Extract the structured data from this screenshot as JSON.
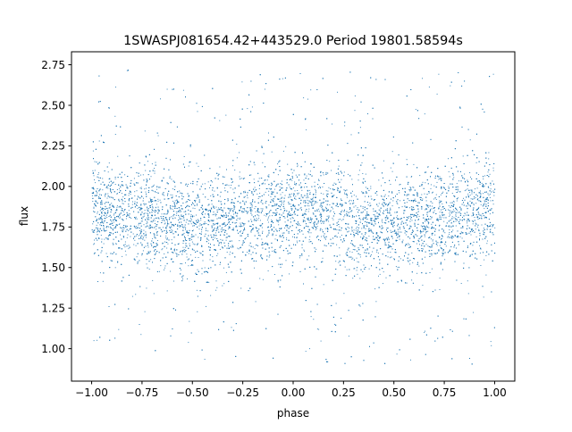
{
  "chart_data": {
    "type": "scatter",
    "title": "1SWASPJ081654.42+443529.0 Period 19801.58594s",
    "xlabel": "phase",
    "ylabel": "flux",
    "xlim": [
      -1.1,
      1.1
    ],
    "ylim": [
      0.8,
      2.83
    ],
    "xticks": [
      "−1.00",
      "−0.75",
      "−0.50",
      "−0.25",
      "0.00",
      "0.25",
      "0.50",
      "0.75",
      "1.00"
    ],
    "xtick_values": [
      -1.0,
      -0.75,
      -0.5,
      -0.25,
      0.0,
      0.25,
      0.5,
      0.75,
      1.0
    ],
    "yticks": [
      "1.00",
      "1.25",
      "1.50",
      "1.75",
      "2.00",
      "2.25",
      "2.50",
      "2.75"
    ],
    "ytick_values": [
      1.0,
      1.25,
      1.5,
      1.75,
      2.0,
      2.25,
      2.5,
      2.75
    ],
    "grid": false,
    "legend": "none",
    "color": "#1f77b4",
    "point_range": {
      "x": [
        -1.0,
        1.0
      ],
      "y": [
        0.9,
        2.72
      ]
    },
    "trend": {
      "x": [
        -1.0,
        -0.75,
        -0.5,
        -0.25,
        0.0,
        0.25,
        0.5,
        0.75,
        1.0
      ],
      "y": [
        1.86,
        1.82,
        1.76,
        1.8,
        1.86,
        1.81,
        1.76,
        1.81,
        1.86
      ]
    }
  }
}
